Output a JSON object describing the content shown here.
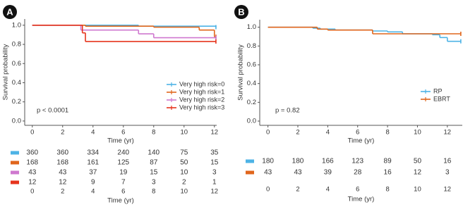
{
  "chart_data": [
    {
      "type": "step",
      "label": "A",
      "ylabel": "Survival probability",
      "xlabel": "Time (yr)",
      "annotation": "p < 0.0001",
      "xlim": [
        -0.5,
        12.15
      ],
      "ylim": [
        -0.045,
        1.065
      ],
      "xticks": [
        0,
        2,
        4,
        6,
        8,
        10,
        12
      ],
      "yticks": [
        {
          "value": 0,
          "label": "0.0"
        },
        0.2,
        0.4,
        0.6,
        0.8,
        {
          "value": 1,
          "label": "1.0"
        }
      ],
      "legend": "lower right",
      "series": [
        {
          "name": "Very high risk=0",
          "color": "#4db3e6",
          "x": [
            0,
            7,
            12.1
          ],
          "values": [
            1.0,
            0.99,
            0.98
          ]
        },
        {
          "name": "Very high risk=1",
          "color": "#e0661c",
          "x": [
            0,
            3.5,
            8,
            11,
            12,
            12.1
          ],
          "values": [
            1.0,
            0.99,
            0.98,
            0.95,
            0.88,
            0.88
          ]
        },
        {
          "name": "Very high risk=2",
          "color": "#cf78cf",
          "x": [
            0,
            3.2,
            7,
            8,
            12.1
          ],
          "values": [
            1.0,
            0.95,
            0.91,
            0.87,
            0.87
          ]
        },
        {
          "name": "Very high risk=3",
          "color": "#e6341d",
          "x": [
            0,
            3.3,
            3.5,
            12.1
          ],
          "values": [
            1.0,
            0.92,
            0.83,
            0.83
          ]
        }
      ],
      "risk_table": [
        [
          360,
          360,
          334,
          240,
          140,
          75,
          35
        ],
        [
          168,
          168,
          161,
          125,
          87,
          50,
          15
        ],
        [
          43,
          43,
          37,
          19,
          15,
          10,
          3
        ],
        [
          12,
          12,
          9,
          7,
          3,
          2,
          1
        ]
      ]
    },
    {
      "type": "step",
      "label": "B",
      "ylabel": "Survival probability",
      "xlabel": "Time (yr)",
      "annotation": "p = 0.82",
      "xlim": [
        -0.55,
        13
      ],
      "ylim": [
        -0.045,
        1.08
      ],
      "xticks": [
        0,
        2,
        4,
        6,
        8,
        10,
        12
      ],
      "yticks": [
        {
          "value": 0,
          "label": "0.0"
        },
        0.2,
        0.4,
        0.6,
        0.8,
        {
          "value": 1,
          "label": "1.0"
        }
      ],
      "legend": "lower right",
      "series": [
        {
          "name": "RP",
          "color": "#4db3e6",
          "x": [
            0,
            3,
            3.5,
            4.5,
            7,
            8,
            9,
            11,
            11.5,
            12,
            12.9
          ],
          "values": [
            1.0,
            0.99,
            0.98,
            0.97,
            0.96,
            0.95,
            0.93,
            0.92,
            0.89,
            0.85,
            0.85
          ]
        },
        {
          "name": "EBRT",
          "color": "#e0661c",
          "x": [
            0,
            3.3,
            4,
            7,
            12.9
          ],
          "values": [
            1.0,
            0.98,
            0.97,
            0.93,
            0.93
          ]
        }
      ],
      "risk_table": [
        [
          180,
          180,
          166,
          123,
          89,
          50,
          16
        ],
        [
          43,
          43,
          39,
          28,
          16,
          12,
          3
        ]
      ]
    }
  ]
}
